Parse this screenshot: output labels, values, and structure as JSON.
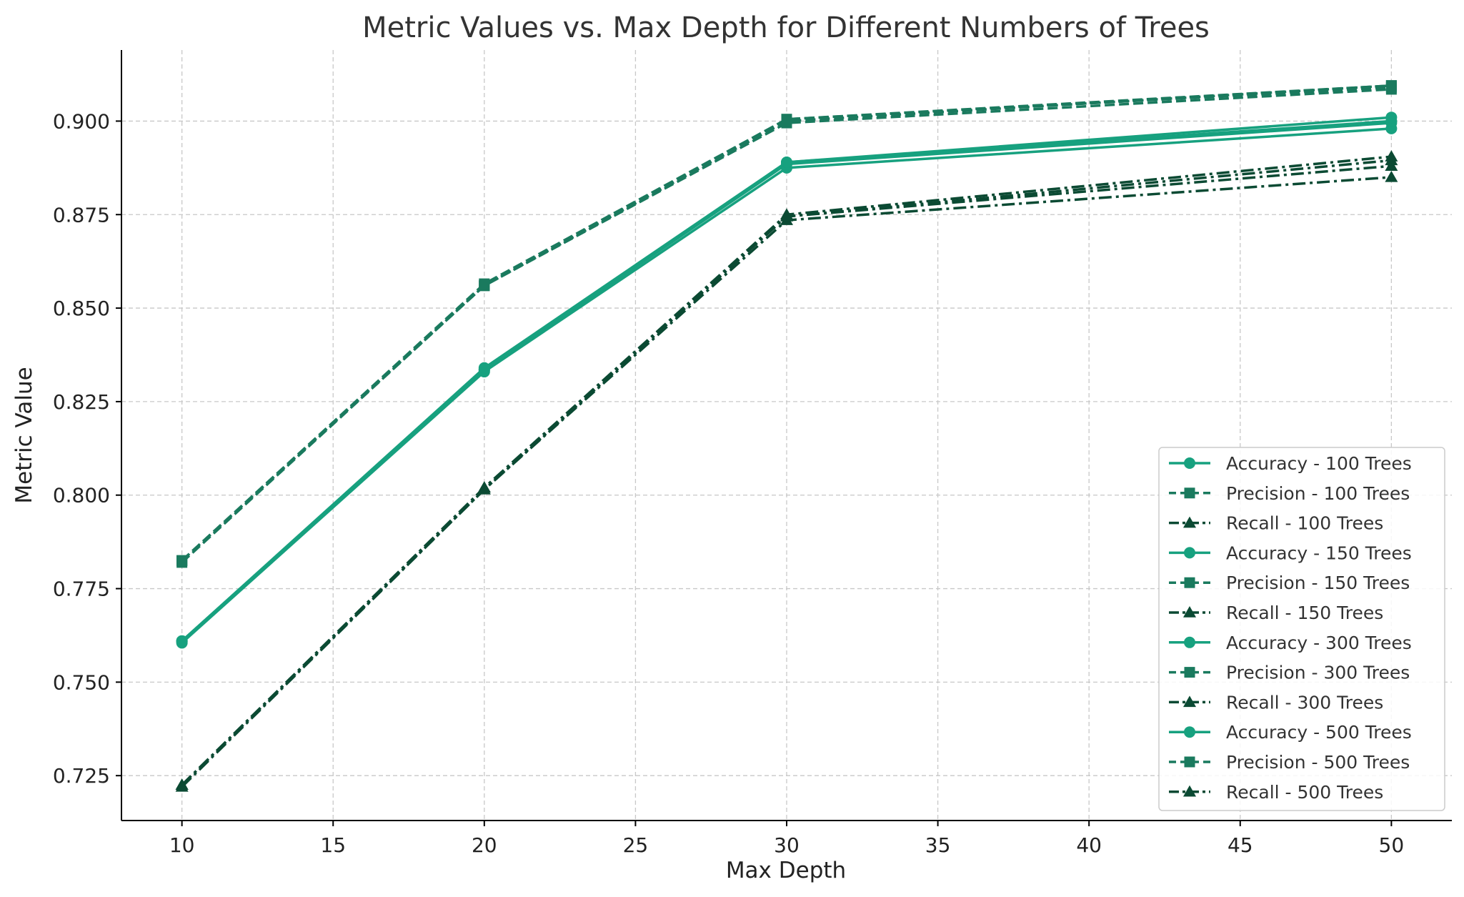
{
  "chart_data": {
    "type": "line",
    "title": "Metric Values vs. Max Depth for Different Numbers of Trees",
    "xlabel": "Max Depth",
    "ylabel": "Metric Value",
    "x": [
      10,
      20,
      30,
      50
    ],
    "xlim": [
      8,
      52
    ],
    "ylim": [
      0.713,
      0.919
    ],
    "xticks": [
      "10",
      "15",
      "20",
      "25",
      "30",
      "35",
      "40",
      "45",
      "50"
    ],
    "yticks": [
      "0.725",
      "0.750",
      "0.775",
      "0.800",
      "0.825",
      "0.850",
      "0.875",
      "0.900"
    ],
    "grid": true,
    "legend_position": "lower right",
    "series": [
      {
        "name": "Accuracy - 100 Trees",
        "metric": "accuracy",
        "color": "#17a17f",
        "values": [
          0.7605,
          0.833,
          0.8875,
          0.898
        ]
      },
      {
        "name": "Precision - 100 Trees",
        "metric": "precision",
        "color": "#1a7a5e",
        "values": [
          0.782,
          0.856,
          0.8995,
          0.9085
        ]
      },
      {
        "name": "Recall - 100 Trees",
        "metric": "recall",
        "color": "#0b4a33",
        "values": [
          0.722,
          0.8015,
          0.8735,
          0.885
        ]
      },
      {
        "name": "Accuracy - 150 Trees",
        "metric": "accuracy",
        "color": "#17a17f",
        "values": [
          0.761,
          0.8335,
          0.8885,
          0.8995
        ]
      },
      {
        "name": "Precision - 150 Trees",
        "metric": "precision",
        "color": "#1a7a5e",
        "values": [
          0.7825,
          0.856,
          0.9005,
          0.909
        ]
      },
      {
        "name": "Recall - 150 Trees",
        "metric": "recall",
        "color": "#0b4a33",
        "values": [
          0.7225,
          0.8015,
          0.8745,
          0.888
        ]
      },
      {
        "name": "Accuracy - 300 Trees",
        "metric": "accuracy",
        "color": "#17a17f",
        "values": [
          0.761,
          0.8335,
          0.889,
          0.9
        ]
      },
      {
        "name": "Precision - 300 Trees",
        "metric": "precision",
        "color": "#1a7a5e",
        "values": [
          0.7825,
          0.856,
          0.9,
          0.9095
        ]
      },
      {
        "name": "Recall - 300 Trees",
        "metric": "recall",
        "color": "#0b4a33",
        "values": [
          0.7225,
          0.802,
          0.8745,
          0.8895
        ]
      },
      {
        "name": "Accuracy - 500 Trees",
        "metric": "accuracy",
        "color": "#17a17f",
        "values": [
          0.761,
          0.834,
          0.889,
          0.901
        ]
      },
      {
        "name": "Precision - 500 Trees",
        "metric": "precision",
        "color": "#1a7a5e",
        "values": [
          0.7825,
          0.8565,
          0.9005,
          0.9095
        ]
      },
      {
        "name": "Recall - 500 Trees",
        "metric": "recall",
        "color": "#0b4a33",
        "values": [
          0.7225,
          0.802,
          0.875,
          0.8905
        ]
      }
    ]
  }
}
